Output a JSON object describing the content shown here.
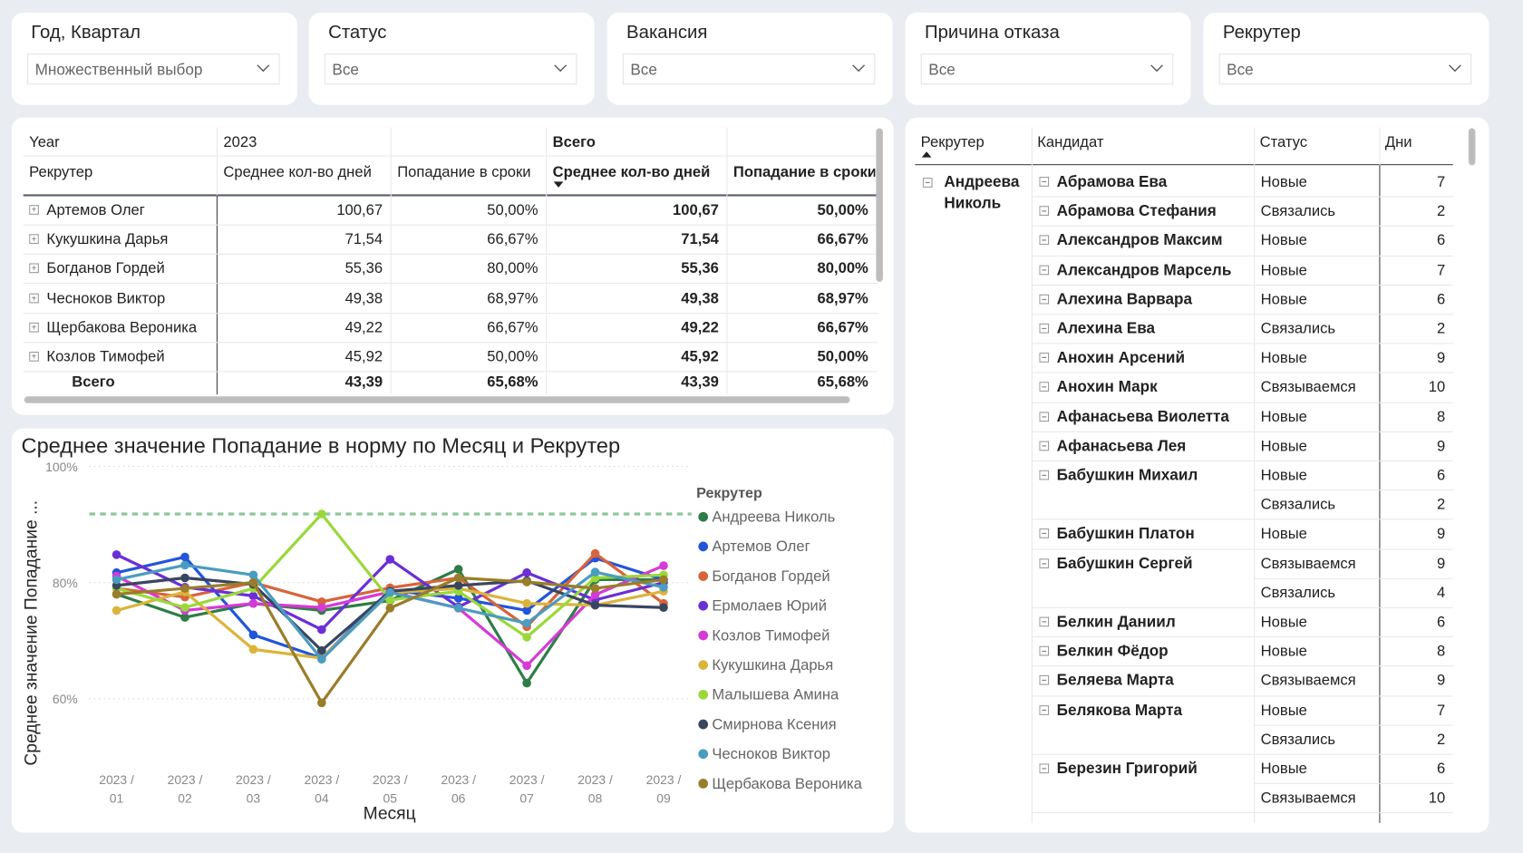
{
  "filters": [
    {
      "title": "Год, Квартал",
      "value": "Множественный выбор"
    },
    {
      "title": "Статус",
      "value": "Все"
    },
    {
      "title": "Вакансия",
      "value": "Все"
    },
    {
      "title": "Причина отказа",
      "value": "Все"
    },
    {
      "title": "Рекрутер",
      "value": "Все"
    }
  ],
  "matrix": {
    "year_label": "Year",
    "year_value": "2023",
    "total_group": "Всего",
    "row_header": "Рекрутер",
    "columns": [
      "Среднее кол-во дней",
      "Попадание в сроки",
      "Среднее кол-во дней",
      "Попадание в сроки"
    ],
    "rows": [
      {
        "name": "Артемов Олег",
        "v": [
          "100,67",
          "50,00%",
          "100,67",
          "50,00%"
        ]
      },
      {
        "name": "Кукушкина Дарья",
        "v": [
          "71,54",
          "66,67%",
          "71,54",
          "66,67%"
        ]
      },
      {
        "name": "Богданов Гордей",
        "v": [
          "55,36",
          "80,00%",
          "55,36",
          "80,00%"
        ]
      },
      {
        "name": "Чесноков Виктор",
        "v": [
          "49,38",
          "68,97%",
          "49,38",
          "68,97%"
        ]
      },
      {
        "name": "Щербакова Вероника",
        "v": [
          "49,22",
          "66,67%",
          "49,22",
          "66,67%"
        ]
      },
      {
        "name": "Козлов Тимофей",
        "v": [
          "45,92",
          "50,00%",
          "45,92",
          "50,00%"
        ]
      }
    ],
    "total": {
      "name": "Всего",
      "v": [
        "43,39",
        "65,68%",
        "43,39",
        "65,68%"
      ]
    }
  },
  "detail": {
    "headers": [
      "Рекрутер",
      "Кандидат",
      "Статус",
      "Дни"
    ],
    "recruiter": "Андреева Николь",
    "candidates": [
      {
        "name": "Абрамова Ева",
        "rows": [
          [
            "Новые",
            "7"
          ]
        ]
      },
      {
        "name": "Абрамова Стефания",
        "rows": [
          [
            "Связались",
            "2"
          ]
        ]
      },
      {
        "name": "Александров Максим",
        "rows": [
          [
            "Новые",
            "6"
          ]
        ]
      },
      {
        "name": "Александров Марсель",
        "rows": [
          [
            "Новые",
            "7"
          ]
        ]
      },
      {
        "name": "Алехина Варвара",
        "rows": [
          [
            "Новые",
            "6"
          ]
        ]
      },
      {
        "name": "Алехина Ева",
        "rows": [
          [
            "Связались",
            "2"
          ]
        ]
      },
      {
        "name": "Анохин Арсений",
        "rows": [
          [
            "Новые",
            "9"
          ]
        ]
      },
      {
        "name": "Анохин Марк",
        "rows": [
          [
            "Связываемся",
            "10"
          ]
        ]
      },
      {
        "name": "Афанасьева Виолетта",
        "rows": [
          [
            "Новые",
            "8"
          ]
        ]
      },
      {
        "name": "Афанасьева Лея",
        "rows": [
          [
            "Новые",
            "9"
          ]
        ]
      },
      {
        "name": "Бабушкин Михаил",
        "rows": [
          [
            "Новые",
            "6"
          ],
          [
            "Связались",
            "2"
          ]
        ]
      },
      {
        "name": "Бабушкин Платон",
        "rows": [
          [
            "Новые",
            "9"
          ]
        ]
      },
      {
        "name": "Бабушкин Сергей",
        "rows": [
          [
            "Связываемся",
            "9"
          ],
          [
            "Связались",
            "4"
          ]
        ]
      },
      {
        "name": "Белкин Даниил",
        "rows": [
          [
            "Новые",
            "6"
          ]
        ]
      },
      {
        "name": "Белкин Фёдор",
        "rows": [
          [
            "Новые",
            "8"
          ]
        ]
      },
      {
        "name": "Беляева Марта",
        "rows": [
          [
            "Связываемся",
            "9"
          ]
        ]
      },
      {
        "name": "Белякова Марта",
        "rows": [
          [
            "Новые",
            "7"
          ],
          [
            "Связались",
            "2"
          ]
        ]
      },
      {
        "name": "Березин Григорий",
        "rows": [
          [
            "Новые",
            "6"
          ],
          [
            "Связываемся",
            "10"
          ]
        ]
      }
    ]
  },
  "chart_data": {
    "type": "line",
    "title": "Среднее значение Попадание в норму по Месяц и Рекрутер",
    "xlabel": "Месяц",
    "ylabel": "Среднее значение Попадание ...",
    "x": [
      "2023 / 01",
      "2023 / 02",
      "2023 / 03",
      "2023 / 04",
      "2023 / 05",
      "2023 / 06",
      "2023 / 07",
      "2023 / 08",
      "2023 / 09"
    ],
    "ylim": [
      50,
      100
    ],
    "yticks": [
      {
        "v": 100,
        "label": "100%"
      },
      {
        "v": 80,
        "label": "80%"
      },
      {
        "v": 60,
        "label": "60%"
      }
    ],
    "reference_line": 91.8,
    "reference_color": "#8cc79a",
    "legend_title": "Рекрутер",
    "legend_position": "right",
    "series": [
      {
        "name": "Андреева Николь",
        "color": "#2e7d46",
        "values": [
          78,
          74,
          76.4,
          75.2,
          76.9,
          82.3,
          62.7,
          80.5,
          80.5
        ]
      },
      {
        "name": "Артемов Олег",
        "color": "#2255d9",
        "values": [
          81.7,
          84.4,
          71,
          67,
          78.7,
          77.3,
          75.2,
          84.2,
          80.5
        ]
      },
      {
        "name": "Богданов Гордей",
        "color": "#d8643a",
        "values": [
          79,
          77.5,
          80,
          76.7,
          79.1,
          80.8,
          72.4,
          85,
          76.4
        ]
      },
      {
        "name": "Ермолаев Юрий",
        "color": "#6a2fd6",
        "values": [
          84.8,
          79.2,
          77.7,
          71.9,
          84,
          75.8,
          81.7,
          77,
          80
        ]
      },
      {
        "name": "Козлов Тимофей",
        "color": "#d63ad6",
        "values": [
          81.1,
          75.2,
          76.4,
          75.7,
          78.4,
          75.6,
          65.7,
          77.9,
          82.9
        ]
      },
      {
        "name": "Кукушкина Дарья",
        "color": "#dcb43c",
        "values": [
          75.2,
          78.4,
          68.5,
          67,
          78.2,
          79,
          76.4,
          76.1,
          78.5
        ]
      },
      {
        "name": "Малышева Амина",
        "color": "#9ad83a",
        "values": [
          79,
          75.7,
          79,
          91.8,
          77,
          78.5,
          70.6,
          80.8,
          81.3
        ]
      },
      {
        "name": "Смирнова Ксения",
        "color": "#3a4660",
        "values": [
          79.5,
          80.8,
          79.7,
          68.3,
          78.5,
          79.5,
          80.3,
          76.1,
          75.7
        ]
      },
      {
        "name": "Чесноков Виктор",
        "color": "#4a9cc0",
        "values": [
          80.5,
          83,
          81.3,
          66.8,
          78.3,
          75.6,
          73,
          81.8,
          79.2
        ]
      },
      {
        "name": "Щербакова Вероника",
        "color": "#9a7d2a",
        "values": [
          78,
          79,
          80,
          59.3,
          75.6,
          80.8,
          80.1,
          79,
          80.5
        ]
      }
    ]
  }
}
